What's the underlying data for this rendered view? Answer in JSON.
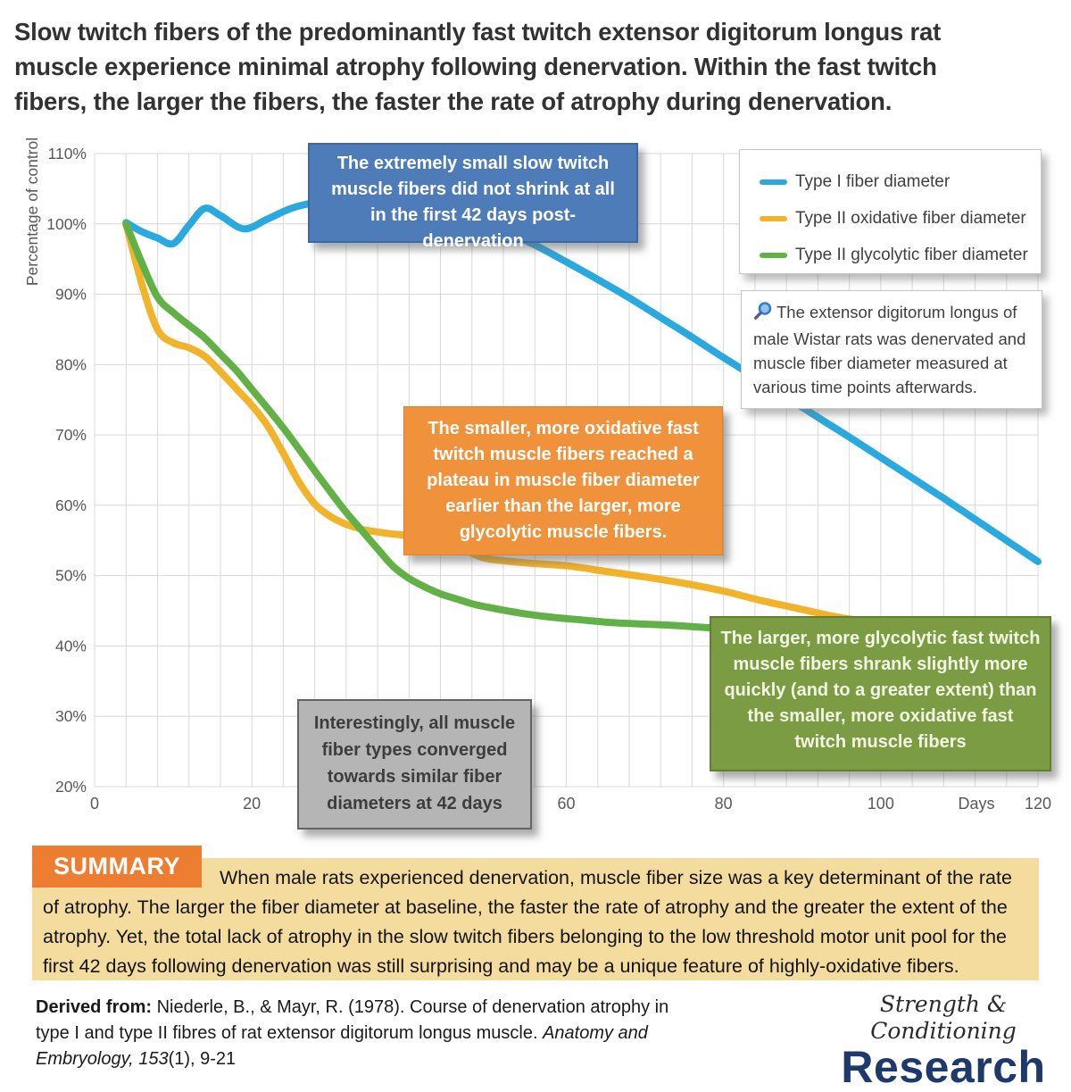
{
  "title": {
    "lines": [
      "Slow twitch fibers of the predominantly fast twitch extensor digitorum longus rat",
      "muscle experience minimal atrophy following denervation. Within the fast twitch",
      "fibers, the larger the fibers, the faster the rate of atrophy during denervation."
    ]
  },
  "chart": {
    "y_axis_title": "Percentage of control",
    "x_unit_label": "Days",
    "y_ticks": [
      "110%",
      "100%",
      "90%",
      "80%",
      "70%",
      "60%",
      "50%",
      "40%",
      "30%",
      "20%"
    ],
    "x_ticks": [
      "0",
      "20",
      "40",
      "60",
      "80",
      "100",
      "120"
    ]
  },
  "chart_data": {
    "type": "line",
    "title": "",
    "xlabel": "Days",
    "ylabel": "Percentage of control",
    "xlim": [
      0,
      120
    ],
    "ylim": [
      20,
      110
    ],
    "grid": true,
    "x_gridline_step_days": 4,
    "y_gridline_step_pct": 10,
    "legend_position": "top-right",
    "series": [
      {
        "name": "Type I fiber diameter",
        "color": "#29a9e0",
        "x": [
          4,
          6,
          8,
          10,
          12,
          14,
          16,
          19,
          22,
          25,
          28,
          32,
          36,
          40,
          44,
          48,
          52,
          56,
          60,
          64,
          68,
          72,
          76,
          80,
          84,
          88,
          92,
          96,
          100,
          104,
          108,
          112,
          116,
          120
        ],
        "y": [
          100.2,
          98.9,
          98.0,
          97.2,
          99.8,
          102.2,
          101.2,
          99.3,
          100.7,
          102.2,
          103.0,
          103.4,
          103.5,
          103.2,
          102.4,
          100.9,
          99.0,
          97.0,
          94.6,
          92.1,
          89.5,
          86.7,
          83.9,
          81.0,
          78.2,
          75.4,
          72.5,
          69.7,
          66.8,
          63.9,
          61.0,
          58.0,
          55.0,
          52.0
        ]
      },
      {
        "name": "Type II oxidative fiber diameter",
        "color": "#f2b32a",
        "x": [
          4,
          6,
          8,
          10,
          12,
          14,
          16,
          18,
          20,
          22,
          24,
          26,
          28,
          30,
          32,
          34,
          36,
          38,
          40,
          42,
          44,
          46,
          48,
          50,
          55,
          60,
          65,
          70,
          75,
          80,
          85,
          90,
          95,
          100,
          110,
          120
        ],
        "y": [
          100,
          91.5,
          85.0,
          83.1,
          82.4,
          81.2,
          79.0,
          76.6,
          74.2,
          71.3,
          67.4,
          63.3,
          60.2,
          58.4,
          57.3,
          56.6,
          56.2,
          55.9,
          55.7,
          55.4,
          55.1,
          54.3,
          53.2,
          52.4,
          51.8,
          51.4,
          50.6,
          49.8,
          48.9,
          47.8,
          46.4,
          45.2,
          44.0,
          43.4,
          42.8,
          42.3
        ]
      },
      {
        "name": "Type II glycolytic fiber diameter",
        "color": "#61b146",
        "x": [
          4,
          6,
          8,
          10,
          12,
          14,
          16,
          18,
          20,
          22,
          24,
          26,
          28,
          30,
          32,
          34,
          36,
          38,
          40,
          42,
          44,
          46,
          48,
          50,
          54,
          58,
          62,
          66,
          70,
          74,
          78,
          82,
          90,
          100,
          110,
          120
        ],
        "y": [
          100,
          94.5,
          89.6,
          87.4,
          85.6,
          83.8,
          81.5,
          79.2,
          76.5,
          73.8,
          71.0,
          68.0,
          64.9,
          61.9,
          59.0,
          56.4,
          53.8,
          51.3,
          49.6,
          48.4,
          47.4,
          46.7,
          46.0,
          45.5,
          44.7,
          44.1,
          43.7,
          43.3,
          43.1,
          42.9,
          42.6,
          42.4,
          42.1,
          41.9,
          41.7,
          41.6
        ]
      }
    ],
    "annotations_on_chart": [
      "The extremely small slow twitch muscle fibers did not shrink at all in the first 42 days post-denervation",
      "The smaller, more oxidative fast twitch muscle fibers reached a plateau in muscle fiber diameter earlier than the larger, more glycolytic muscle fibers.",
      "The larger, more glycolytic fast twitch muscle fibers shrank slightly more quickly (and to a greater extent)  than the smaller, more oxidative fast twitch muscle fibers",
      "Interestingly, all muscle fiber types converged towards similar fiber diameters at 42 days"
    ]
  },
  "annotations": {
    "slow_twitch": {
      "text": "The extremely small slow twitch muscle fibers did not shrink at all in the first 42 days post-denervation",
      "bg": "#4e7cb8"
    },
    "oxidative_plateau": {
      "text": "The smaller, more oxidative fast twitch muscle fibers reached a plateau in muscle fiber diameter earlier than the larger, more glycolytic muscle fibers.",
      "bg": "#f0913c"
    },
    "glycolytic_faster": {
      "text": "The larger, more glycolytic fast twitch muscle fibers shrank slightly more quickly (and to a greater extent)  than the smaller, more oxidative fast twitch muscle fibers",
      "bg": "#7b9c42"
    },
    "convergence": {
      "text": "Interestingly, all muscle fiber types converged towards similar fiber diameters at 42 days",
      "bg": "#b5b5b5"
    }
  },
  "note": {
    "icon": "magnifier-icon",
    "text": "The extensor digitorum longus of male Wistar rats was denervated and muscle fiber diameter measured at various time points afterwards."
  },
  "summary": {
    "label": "SUMMARY",
    "text": "When male rats experienced denervation, muscle fiber size was a key determinant of the rate of atrophy. The larger the fiber diameter at baseline, the faster the rate of atrophy and the greater the extent of the atrophy. Yet, the total lack of atrophy in the slow twitch fibers belonging to the low threshold motor unit pool for the first 42 days following denervation was still surprising and may be a unique feature of highly-oxidative fibers.",
    "label_bg": "#ed7d31",
    "band_bg": "#f4dc9f"
  },
  "citation": {
    "prefix": "Derived from:",
    "body": " Niederle, B., & Mayr, R. (1978). Course of denervation atrophy in type I and type II fibres of rat extensor digitorum longus muscle. ",
    "journal_volume": "Anatomy and Embryology, 153",
    "pages": "(1), 9-21"
  },
  "logo": {
    "line1": "Strength & Conditioning",
    "line2": "Research",
    "color": "#1e3a6d"
  }
}
